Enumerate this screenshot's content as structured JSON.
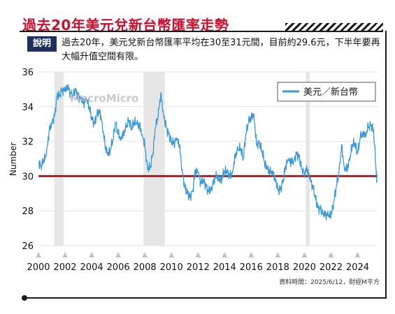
{
  "header": {
    "title": "過去20年美元兌新台幣匯率走勢",
    "explain_label": "說明",
    "explain_text": "過去20年，美元兌新台幣匯率平均在30至31元間，目前約29.6元，下半年要再大幅升值空間有限。"
  },
  "source": "資料時間：2025/6/12，財經M平方",
  "watermark": "MacroMicro",
  "colors": {
    "title": "#c8102e",
    "line": "#3a9ad9",
    "reference": "#b01a22",
    "shade": "#e6e6e6"
  },
  "chart_data": {
    "type": "line",
    "ylabel": "Number",
    "xlabel": "",
    "ylim": [
      26,
      36
    ],
    "xlim": [
      2000,
      2025.5
    ],
    "yticks": [
      26,
      28,
      30,
      32,
      34,
      36
    ],
    "xticks": [
      "2000",
      "2002",
      "2004",
      "2006",
      "2008",
      "2010",
      "2012",
      "2014",
      "2016",
      "2018",
      "2020",
      "2022",
      "2024"
    ],
    "legend_position": "top-right",
    "reference_line": 30,
    "recession_shading": [
      [
        2001.2,
        2001.9
      ],
      [
        2007.9,
        2009.5
      ],
      [
        2020.1,
        2020.4
      ]
    ],
    "series": [
      {
        "name": "美元／新台幣",
        "x": [
          2000.0,
          2000.2,
          2000.4,
          2000.6,
          2000.8,
          2001.0,
          2001.2,
          2001.4,
          2001.6,
          2001.8,
          2002.0,
          2002.2,
          2002.4,
          2002.6,
          2002.8,
          2003.0,
          2003.2,
          2003.4,
          2003.6,
          2003.8,
          2004.0,
          2004.2,
          2004.4,
          2004.6,
          2004.8,
          2005.0,
          2005.2,
          2005.4,
          2005.6,
          2005.8,
          2006.0,
          2006.2,
          2006.4,
          2006.6,
          2006.8,
          2007.0,
          2007.2,
          2007.4,
          2007.6,
          2007.8,
          2008.0,
          2008.2,
          2008.4,
          2008.6,
          2008.8,
          2009.0,
          2009.2,
          2009.4,
          2009.6,
          2009.8,
          2010.0,
          2010.2,
          2010.4,
          2010.6,
          2010.8,
          2011.0,
          2011.2,
          2011.4,
          2011.6,
          2011.8,
          2012.0,
          2012.2,
          2012.4,
          2012.6,
          2012.8,
          2013.0,
          2013.2,
          2013.4,
          2013.6,
          2013.8,
          2014.0,
          2014.2,
          2014.4,
          2014.6,
          2014.8,
          2015.0,
          2015.2,
          2015.4,
          2015.6,
          2015.8,
          2016.0,
          2016.2,
          2016.4,
          2016.6,
          2016.8,
          2017.0,
          2017.2,
          2017.4,
          2017.6,
          2017.8,
          2018.0,
          2018.2,
          2018.4,
          2018.6,
          2018.8,
          2019.0,
          2019.2,
          2019.4,
          2019.6,
          2019.8,
          2020.0,
          2020.2,
          2020.4,
          2020.6,
          2020.8,
          2021.0,
          2021.2,
          2021.4,
          2021.6,
          2021.8,
          2022.0,
          2022.2,
          2022.4,
          2022.6,
          2022.8,
          2023.0,
          2023.2,
          2023.4,
          2023.6,
          2023.8,
          2024.0,
          2024.2,
          2024.4,
          2024.6,
          2024.8,
          2025.0,
          2025.2,
          2025.4,
          2025.45
        ],
        "values": [
          30.8,
          30.6,
          30.9,
          31.2,
          32.6,
          33.1,
          33.4,
          34.6,
          34.7,
          35.0,
          34.9,
          35.1,
          34.8,
          34.7,
          34.9,
          34.6,
          34.5,
          34.2,
          34.4,
          34.0,
          33.4,
          33.0,
          33.5,
          33.8,
          33.0,
          31.8,
          31.2,
          31.5,
          32.1,
          33.1,
          32.4,
          32.2,
          32.5,
          32.8,
          33.2,
          32.8,
          33.1,
          33.0,
          32.9,
          32.4,
          31.8,
          30.4,
          30.5,
          31.3,
          32.8,
          33.4,
          34.8,
          33.6,
          32.8,
          32.4,
          32.0,
          31.9,
          32.1,
          31.8,
          30.4,
          29.4,
          29.0,
          28.8,
          29.2,
          30.3,
          30.2,
          29.6,
          29.8,
          29.4,
          29.1,
          29.3,
          29.8,
          30.0,
          29.7,
          29.9,
          30.3,
          30.2,
          30.0,
          30.3,
          31.2,
          31.5,
          31.6,
          31.0,
          32.4,
          33.1,
          33.4,
          33.6,
          31.8,
          31.9,
          31.5,
          30.8,
          30.4,
          30.2,
          30.3,
          29.9,
          29.2,
          29.2,
          29.8,
          30.6,
          30.9,
          30.8,
          30.9,
          31.3,
          31.1,
          30.4,
          30.2,
          30.4,
          29.8,
          29.5,
          28.9,
          28.2,
          28.1,
          27.9,
          27.8,
          27.7,
          27.7,
          28.5,
          29.4,
          30.2,
          31.8,
          30.5,
          30.4,
          30.9,
          31.8,
          31.9,
          31.3,
          32.2,
          32.5,
          32.4,
          32.8,
          32.9,
          32.7,
          30.2,
          29.6
        ]
      }
    ]
  }
}
